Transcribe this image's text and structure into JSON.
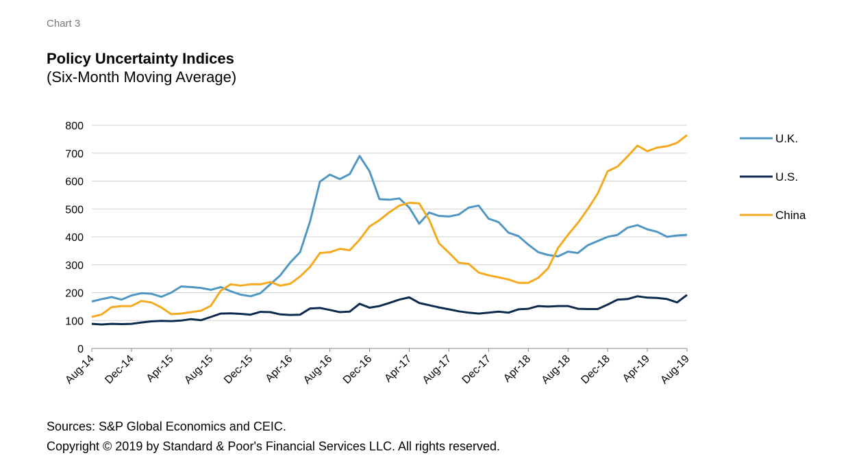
{
  "chart_data": {
    "type": "line",
    "label": "Chart 3",
    "title": "Policy Uncertainty Indices",
    "subtitle": "(Six-Month Moving Average)",
    "categories": [
      "Aug-14",
      null,
      null,
      null,
      "Dec-14",
      null,
      null,
      null,
      "Apr-15",
      null,
      null,
      null,
      "Aug-15",
      null,
      null,
      null,
      "Dec-15",
      null,
      null,
      null,
      "Apr-16",
      null,
      null,
      null,
      "Aug-16",
      null,
      null,
      null,
      "Dec-16",
      null,
      null,
      null,
      "Apr-17",
      null,
      null,
      null,
      "Aug-17",
      null,
      null,
      null,
      "Dec-17",
      null,
      null,
      null,
      "Apr-18",
      null,
      null,
      null,
      "Aug-18",
      null,
      null,
      null,
      "Dec-18",
      null,
      null,
      null,
      "Apr-19",
      null,
      null,
      null,
      "Aug-19"
    ],
    "series": [
      {
        "name": "U.K.",
        "color": "#4f97c2",
        "values": [
          168,
          177,
          184,
          175,
          190,
          198,
          196,
          185,
          200,
          222,
          220,
          217,
          210,
          220,
          205,
          193,
          187,
          198,
          230,
          262,
          308,
          345,
          455,
          598,
          623,
          607,
          625,
          690,
          635,
          535,
          533,
          538,
          505,
          447,
          487,
          475,
          473,
          480,
          505,
          512,
          465,
          453,
          415,
          403,
          372,
          345,
          335,
          330,
          347,
          342,
          370,
          385,
          400,
          407,
          433,
          442,
          427,
          418,
          400,
          405,
          407
        ]
      },
      {
        "name": "U.S.",
        "color": "#0b2a4e",
        "values": [
          88,
          86,
          88,
          87,
          88,
          93,
          97,
          99,
          98,
          100,
          105,
          101,
          113,
          125,
          126,
          124,
          121,
          131,
          130,
          122,
          120,
          121,
          143,
          145,
          138,
          130,
          132,
          160,
          146,
          152,
          163,
          175,
          183,
          163,
          155,
          147,
          140,
          133,
          128,
          125,
          128,
          132,
          128,
          140,
          142,
          152,
          150,
          152,
          152,
          142,
          141,
          141,
          157,
          175,
          177,
          187,
          182,
          181,
          177,
          165,
          192
        ]
      },
      {
        "name": "China",
        "color": "#f5a91f",
        "values": [
          113,
          122,
          148,
          152,
          152,
          170,
          165,
          147,
          123,
          125,
          130,
          135,
          153,
          207,
          230,
          225,
          230,
          230,
          238,
          225,
          232,
          258,
          292,
          342,
          345,
          357,
          352,
          390,
          437,
          460,
          488,
          512,
          522,
          520,
          462,
          377,
          343,
          307,
          303,
          272,
          262,
          255,
          247,
          235,
          235,
          253,
          287,
          360,
          407,
          450,
          500,
          555,
          635,
          652,
          688,
          727,
          707,
          720,
          725,
          737,
          765
        ]
      }
    ],
    "ylim": [
      0,
      800
    ],
    "yticks": [
      0,
      100,
      200,
      300,
      400,
      500,
      600,
      700,
      800
    ],
    "grid": true,
    "legend": "right",
    "sources": "Sources: S&P Global Economics and CEIC.",
    "copyright": "Copyright © 2019 by Standard & Poor's Financial Services LLC. All rights reserved."
  }
}
